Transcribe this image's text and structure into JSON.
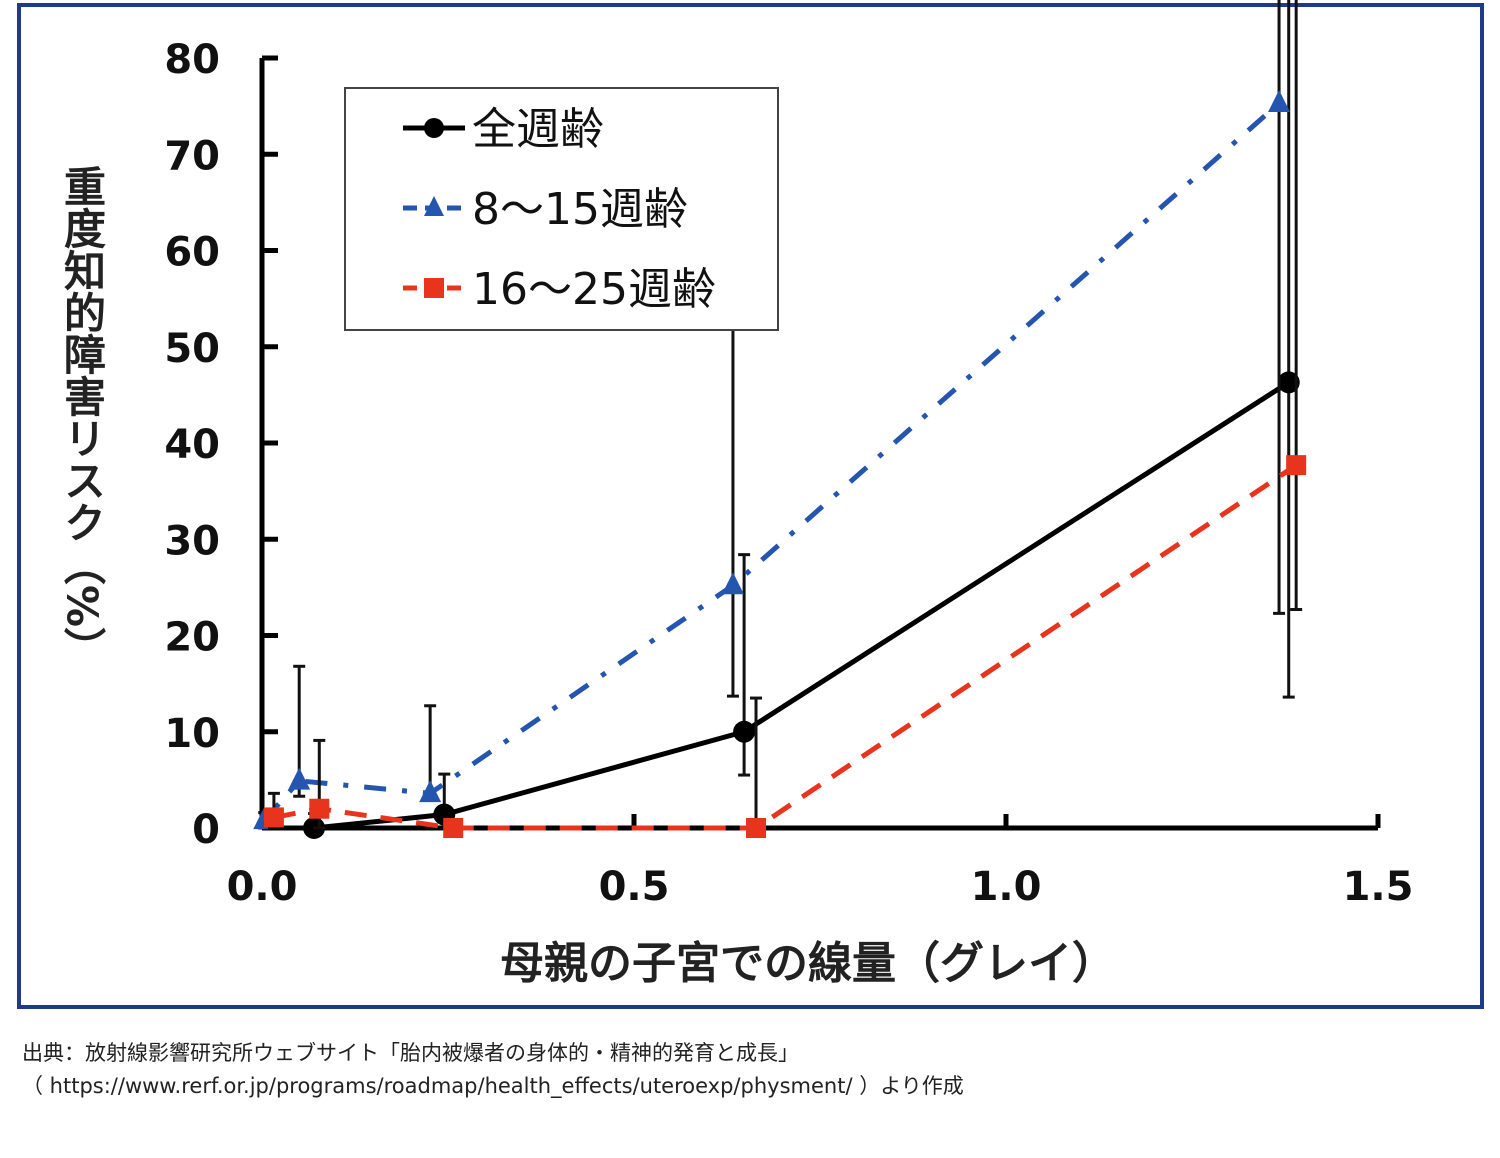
{
  "chart_data": {
    "type": "line",
    "title": "",
    "xlabel": "母親の子宮での線量（グレイ）",
    "ylabel": "重度知的障害リスク（%）",
    "xlim": [
      0,
      1.5
    ],
    "ylim": [
      0,
      80
    ],
    "x_ticks": [
      "0.0",
      "0.5",
      "1.0",
      "1.5"
    ],
    "x_tick_values": [
      0,
      0.5,
      1.0,
      1.5
    ],
    "y_ticks": [
      "0",
      "10",
      "20",
      "30",
      "40",
      "50",
      "60",
      "70",
      "80"
    ],
    "y_tick_values": [
      0,
      10,
      20,
      30,
      40,
      50,
      60,
      70,
      80
    ],
    "grid": false,
    "legend_position": "top-left",
    "series": [
      {
        "name": "全週齢",
        "color": "#000000",
        "marker": "circle",
        "line": "solid",
        "x": [
          0.07,
          0.245,
          0.648,
          1.38
        ],
        "y": [
          0,
          1.4,
          10,
          46.3
        ],
        "err_low": [
          0,
          0,
          4.5,
          32.7
        ],
        "err_high": [
          1.5,
          4.2,
          18.4,
          60.6
        ]
      },
      {
        "name": "8～15週齢",
        "color": "#2456b0",
        "marker": "triangle",
        "line": "dashdot",
        "x": [
          0.003,
          0.05,
          0.226,
          0.633,
          1.367
        ],
        "y": [
          0.8,
          4.9,
          3.6,
          25.2,
          75.3
        ],
        "err_low": [
          0.8,
          1.6,
          0,
          11.5,
          53
        ],
        "err_high": [
          0.8,
          11.9,
          9.1,
          44.3,
          79.3
        ]
      },
      {
        "name": "16～25週齢",
        "color": "#e8341c",
        "marker": "square",
        "line": "dashed",
        "x": [
          0.016,
          0.077,
          0.257,
          0.664,
          1.39
        ],
        "y": [
          1.1,
          2.0,
          0,
          0,
          37.7
        ],
        "err_low": [
          1.1,
          2.0,
          0,
          0,
          15
        ],
        "err_high": [
          2.5,
          7.1,
          0,
          13.5,
          65.8
        ]
      }
    ]
  },
  "source": {
    "line1": "出典：放射線影響研究所ウェブサイト「胎内被爆者の身体的・精神的発育と成長」",
    "line2": "（ https://www.rerf.or.jp/programs/roadmap/health_effects/uteroexp/physment/ ）より作成"
  }
}
